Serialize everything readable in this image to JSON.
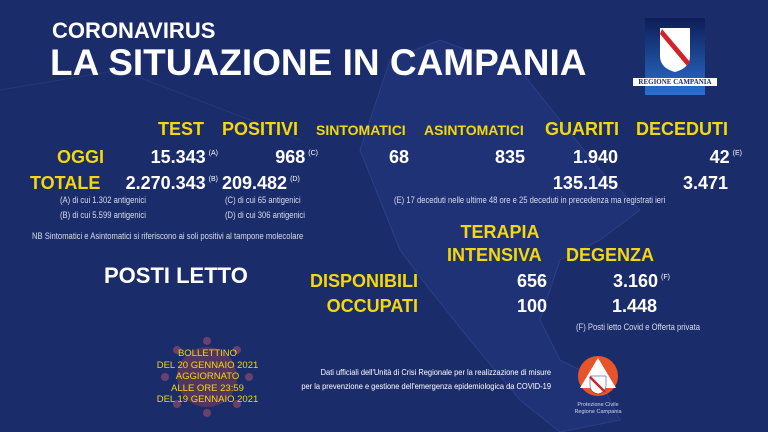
{
  "header": {
    "subtitle": "CORONAVIRUS",
    "title": "LA SITUAZIONE IN CAMPANIA",
    "logo_text": "REGIONE CAMPANIA"
  },
  "columns": {
    "test": "TEST",
    "positivi": "POSITIVI",
    "sintomatici": "SINTOMATICI",
    "asintomatici": "ASINTOMATICI",
    "guariti": "GUARITI",
    "deceduti": "DECEDUTI"
  },
  "oggi": {
    "label": "OGGI",
    "test": "15.343",
    "test_ref": "(A)",
    "positivi": "968",
    "positivi_ref": "(C)",
    "sintomatici": "68",
    "asintomatici": "835",
    "guariti": "1.940",
    "deceduti": "42",
    "deceduti_ref": "(E)"
  },
  "totale": {
    "label": "TOTALE",
    "test": "2.270.343",
    "test_ref": "(B)",
    "positivi": "209.482",
    "positivi_ref": "(D)",
    "guariti": "135.145",
    "deceduti": "3.471"
  },
  "notes": {
    "a": "(A) di cui 1.302 antigenici",
    "b": "(B) di cui 5.599 antigenici",
    "c": "(C) di cui 65 antigenici",
    "d": "(D) di cui 306 antigenici",
    "nb": "NB Sintomatici e Asintomatici si riferiscono ai soli positivi al tampone molecolare",
    "e": "(E) 17 deceduti nelle ultime 48 ore e 25 deceduti in precedenza ma registrati ieri",
    "f": "(F) Posti letto Covid e Offerta privata"
  },
  "posti_letto": {
    "title": "POSTI LETTO",
    "col1_line1": "TERAPIA",
    "col1_line2": "INTENSIVA",
    "col2": "DEGENZA",
    "disponibili_label": "DISPONIBILI",
    "occupati_label": "OCCUPATI",
    "ti_disponibili": "656",
    "deg_disponibili": "3.160",
    "deg_disponibili_ref": "(F)",
    "ti_occupati": "100",
    "deg_occupati": "1.448"
  },
  "bulletin": {
    "line1": "BOLLETTINO",
    "line2": "DEL 20 GENNAIO 2021",
    "line3": "AGGIORNATO",
    "line4": "ALLE ORE 23:59",
    "line5": "DEL 19 GENNAIO 2021"
  },
  "footer": {
    "line1": "Dati ufficiali dell'Unità di Crisi Regionale per la realizzazione di misure",
    "line2": "per la prevenzione e gestione dell'emergenza epidemiologica da COVID-19",
    "pc_logo_line1": "Protezione Civile",
    "pc_logo_line2": "Regione Campania"
  },
  "colors": {
    "background": "#1b2c6a",
    "accent": "#f4d80c",
    "logo_stripe": "#d2232a",
    "pc_orange": "#e8542a"
  }
}
